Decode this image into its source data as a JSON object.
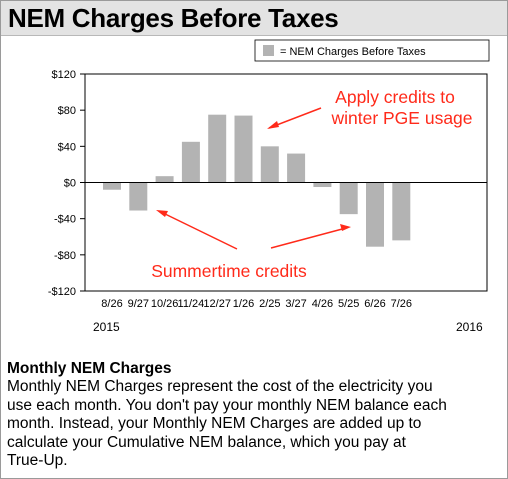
{
  "header": {
    "title": "NEM Charges Before Taxes"
  },
  "chart_data": {
    "type": "bar",
    "legend": {
      "label": "= NEM Charges Before Taxes",
      "placement": "top-right",
      "color": "#b3b3b3"
    },
    "categories": [
      "8/26",
      "9/27",
      "10/26",
      "11/24",
      "12/27",
      "1/26",
      "2/25",
      "3/27",
      "4/26",
      "5/25",
      "6/26",
      "7/26"
    ],
    "values": [
      -8,
      -31,
      7,
      45,
      75,
      74,
      40,
      32,
      -5,
      -35,
      -71,
      -64
    ],
    "ylim": [
      -120,
      120
    ],
    "yticks": [
      120,
      80,
      40,
      0,
      -40,
      -80,
      -120
    ],
    "ytick_labels": [
      "$120",
      "$80",
      "$40",
      "$0",
      "-$40",
      "-$80",
      "-$120"
    ],
    "year_labels": [
      "2015",
      "2016"
    ],
    "bar_color": "#b3b3b3",
    "annotations": [
      {
        "lines": [
          "Apply credits to",
          "winter PGE usage"
        ],
        "color": "#ff2a1a"
      },
      {
        "lines": [
          "Summertime credits"
        ],
        "color": "#ff2a1a"
      }
    ]
  },
  "description": {
    "title": "Monthly NEM Charges",
    "lines": [
      "Monthly NEM Charges represent the cost of the electricity you",
      "use each month.  You don't pay your monthly NEM balance each",
      "month.  Instead, your Monthly NEM Charges are added up to",
      "calculate your Cumulative NEM balance, which you pay at",
      "True-Up."
    ]
  }
}
